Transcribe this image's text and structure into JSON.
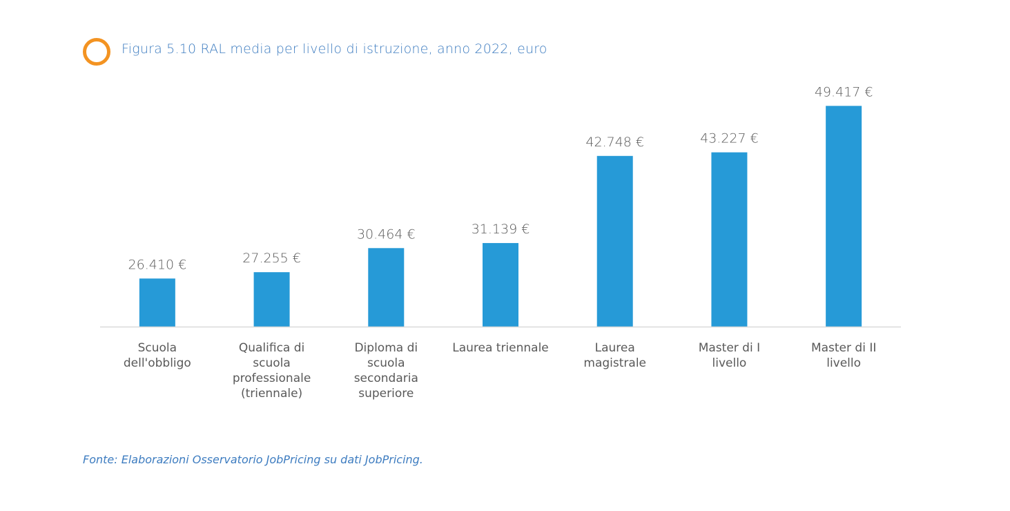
{
  "title": "Figura 5.10 RAL media per livello di istruzione, anno 2022, euro",
  "source": "Fonte: Elaborazioni Osservatorio JobPricing su dati JobPricing.",
  "colors": {
    "bar": "#269ad7",
    "accent_ring": "#f39322",
    "title": "#3d7cc0",
    "axis": "#d9d9d9",
    "label": "#595959"
  },
  "chart_data": {
    "type": "bar",
    "title": "Figura 5.10 RAL media per livello di istruzione, anno 2022, euro",
    "xlabel": "",
    "ylabel": "",
    "ylim": [
      20000,
      50000
    ],
    "grid": false,
    "categories": [
      [
        "Scuola",
        "dell'obbligo"
      ],
      [
        "Qualifica di",
        "scuola",
        "professionale",
        "(triennale)"
      ],
      [
        "Diploma di",
        "scuola",
        "secondaria",
        "superiore"
      ],
      [
        "Laurea triennale"
      ],
      [
        "Laurea",
        "magistrale"
      ],
      [
        "Master di I",
        "livello"
      ],
      [
        "Master di II",
        "livello"
      ]
    ],
    "values": [
      26410,
      27255,
      30464,
      31139,
      42748,
      43227,
      49417
    ],
    "value_labels": [
      "26.410 €",
      "27.255 €",
      "30.464 €",
      "31.139 €",
      "42.748 €",
      "43.227 €",
      "49.417 €"
    ]
  }
}
